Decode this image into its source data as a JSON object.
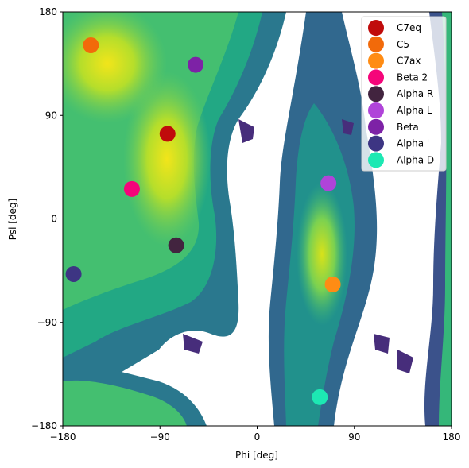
{
  "chart_data": {
    "type": "heatmap",
    "title": "",
    "xlabel": "Phi [deg]",
    "ylabel": "Psi [deg]",
    "xlim": [
      -180,
      180
    ],
    "ylim": [
      -180,
      180
    ],
    "xticks": [
      "−180",
      "−90",
      "0",
      "90",
      "180"
    ],
    "xtick_values": [
      -180,
      -90,
      0,
      90,
      180
    ],
    "yticks": [
      "180",
      "90",
      "0",
      "−90",
      "−180"
    ],
    "ytick_values": [
      180,
      90,
      0,
      -90,
      -180
    ],
    "colormap": "viridis",
    "grid": false,
    "legend_position": "top-right",
    "background_density": "Ramachandran free-energy histogram: high-density (yellow) basins near phi≈-80 psi≈60 (C7eq/beta), phi≈-150 psi≈170, phi≈60 psi≈-30 (C7ax/alpha L) and phi≈-150 psi≈-170; white = unsampled",
    "series": [
      {
        "name": "C7eq",
        "x": -83,
        "y": 74,
        "color": "#c00b0b"
      },
      {
        "name": "C5",
        "x": -154,
        "y": 151,
        "color": "#f26a0a"
      },
      {
        "name": "C7ax",
        "x": 70,
        "y": -57,
        "color": "#ff8c14"
      },
      {
        "name": "Beta 2",
        "x": -116,
        "y": 26,
        "color": "#f5057a"
      },
      {
        "name": "Alpha R",
        "x": -75,
        "y": -23,
        "color": "#42243f"
      },
      {
        "name": "Alpha L",
        "x": 66,
        "y": 31,
        "color": "#b044d9"
      },
      {
        "name": "Beta",
        "x": -57,
        "y": 134,
        "color": "#7d22a6"
      },
      {
        "name": "Alpha '",
        "x": -170,
        "y": -48,
        "color": "#3d3583"
      },
      {
        "name": "Alpha D",
        "x": 58,
        "y": -155,
        "color": "#1de8b3"
      }
    ]
  }
}
